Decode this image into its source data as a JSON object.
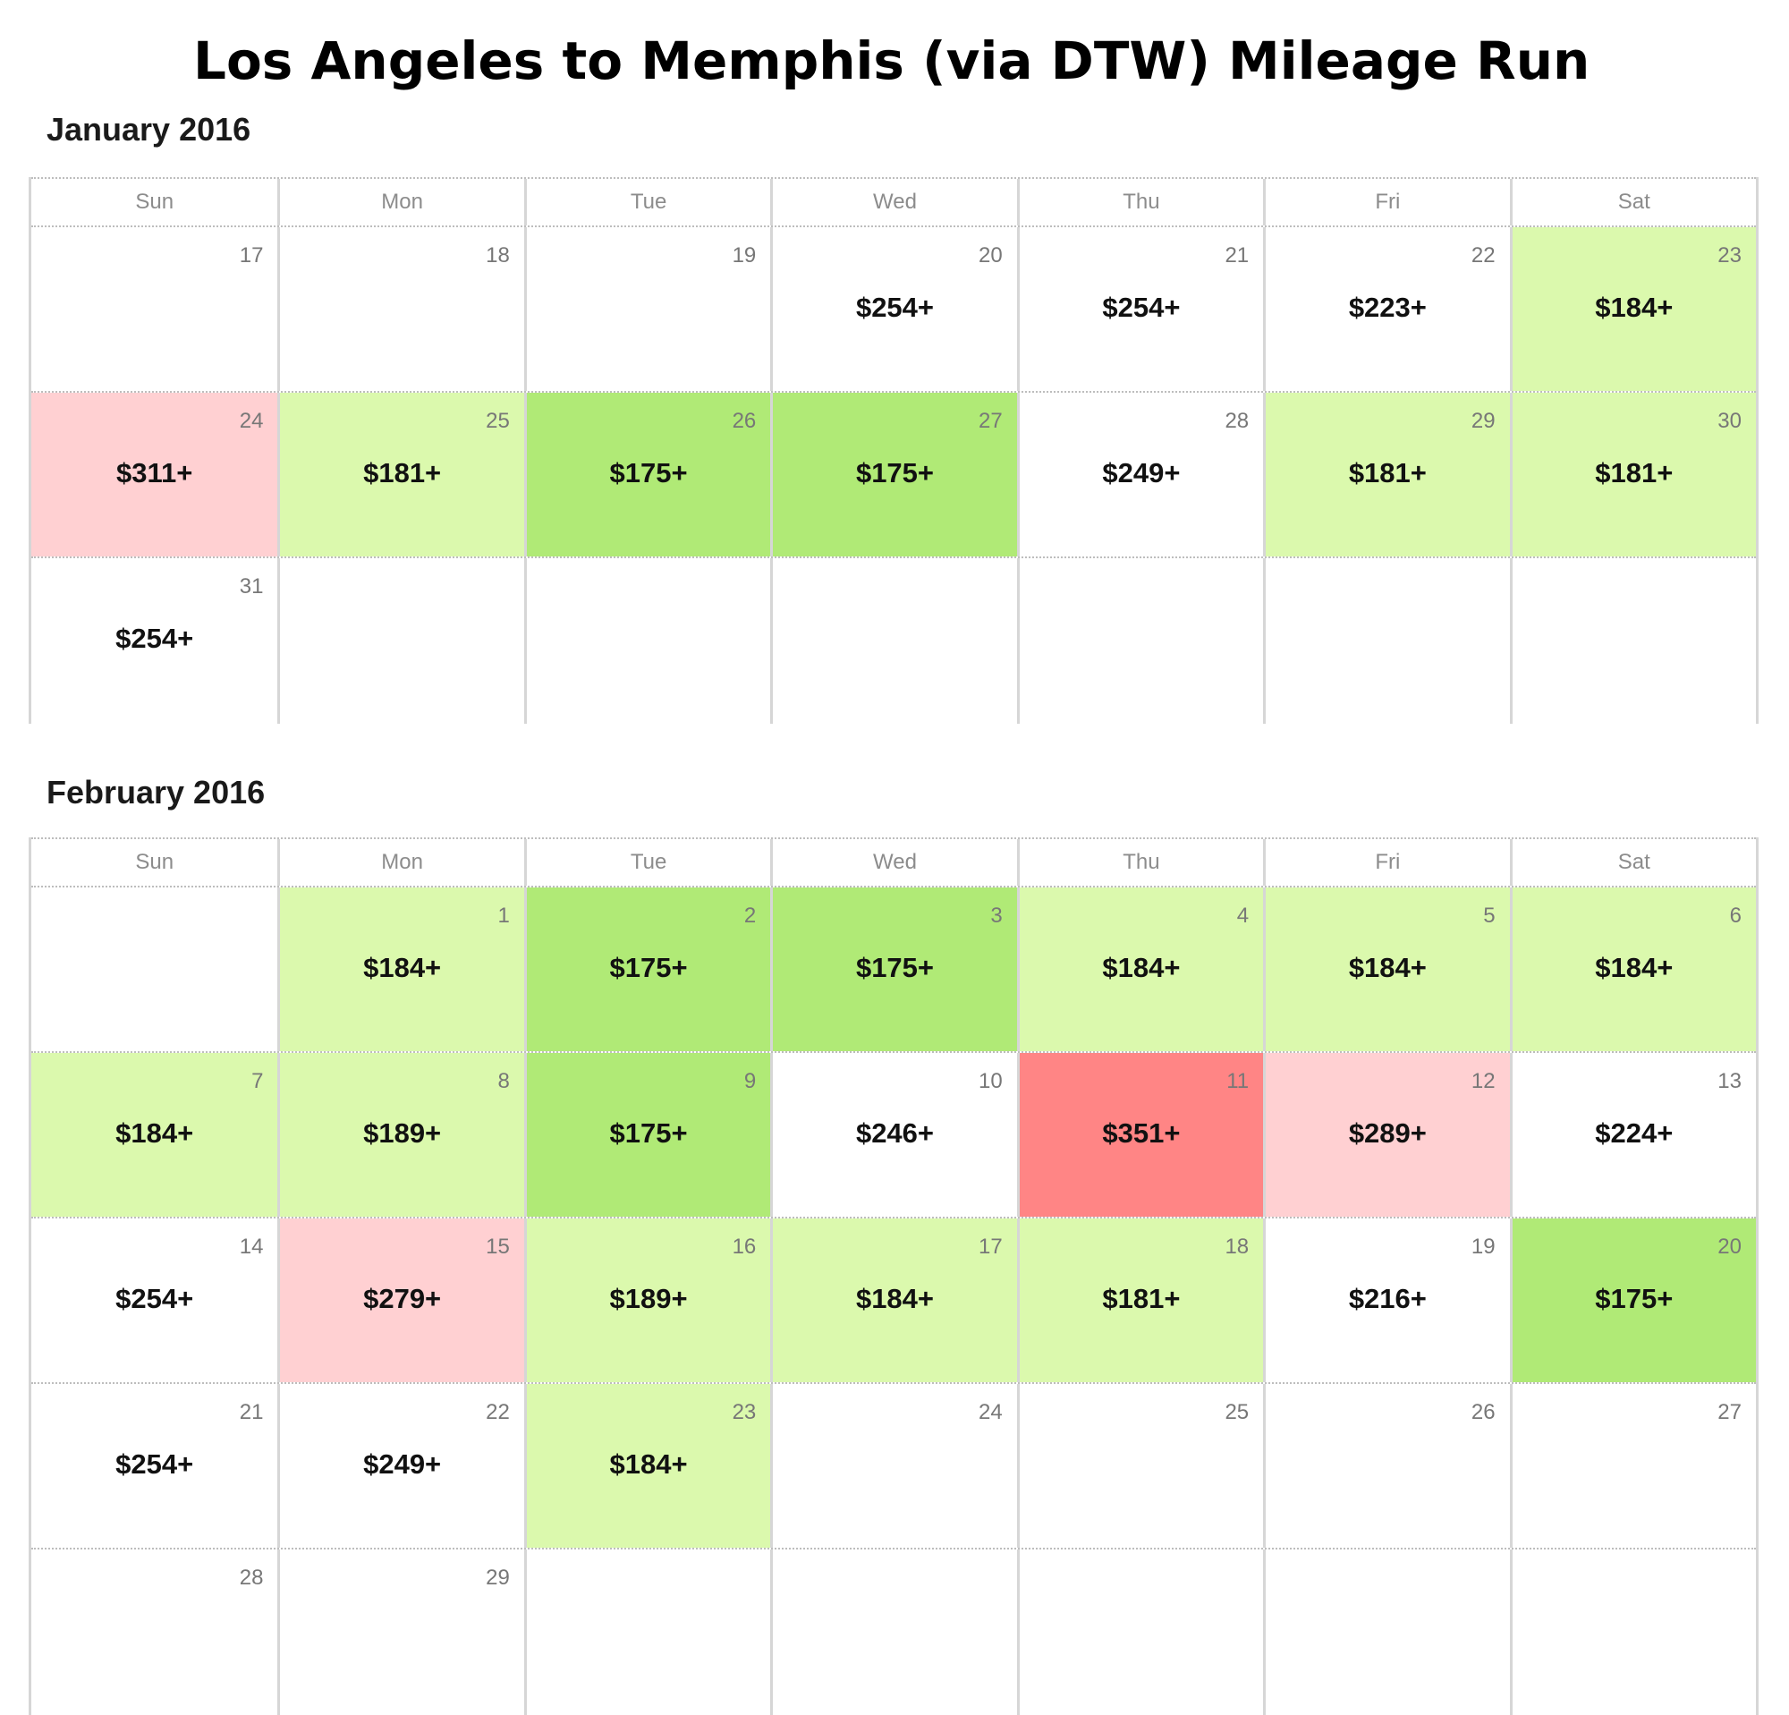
{
  "page_title": "Los Angeles to Memphis (via DTW) Mileage Run",
  "weekdays": [
    "Sun",
    "Mon",
    "Tue",
    "Wed",
    "Thu",
    "Fri",
    "Sat"
  ],
  "colors": {
    "light_green": "#dbf9ad",
    "green": "#b0ea76",
    "light_red": "#ffd0d2",
    "red": "#ff8585",
    "white": "#ffffff"
  },
  "months": [
    {
      "title": "January 2016",
      "weeks": [
        [
          {
            "day": "17",
            "price": "",
            "level": "none"
          },
          {
            "day": "18",
            "price": "",
            "level": "none"
          },
          {
            "day": "19",
            "price": "",
            "level": "none"
          },
          {
            "day": "20",
            "price": "$254+",
            "level": "none"
          },
          {
            "day": "21",
            "price": "$254+",
            "level": "none"
          },
          {
            "day": "22",
            "price": "$223+",
            "level": "none"
          },
          {
            "day": "23",
            "price": "$184+",
            "level": "light-green"
          }
        ],
        [
          {
            "day": "24",
            "price": "$311+",
            "level": "light-red"
          },
          {
            "day": "25",
            "price": "$181+",
            "level": "light-green"
          },
          {
            "day": "26",
            "price": "$175+",
            "level": "green"
          },
          {
            "day": "27",
            "price": "$175+",
            "level": "green"
          },
          {
            "day": "28",
            "price": "$249+",
            "level": "none"
          },
          {
            "day": "29",
            "price": "$181+",
            "level": "light-green"
          },
          {
            "day": "30",
            "price": "$181+",
            "level": "light-green"
          }
        ],
        [
          {
            "day": "31",
            "price": "$254+",
            "level": "none"
          },
          {
            "day": "",
            "price": "",
            "level": "none"
          },
          {
            "day": "",
            "price": "",
            "level": "none"
          },
          {
            "day": "",
            "price": "",
            "level": "none"
          },
          {
            "day": "",
            "price": "",
            "level": "none"
          },
          {
            "day": "",
            "price": "",
            "level": "none"
          },
          {
            "day": "",
            "price": "",
            "level": "none"
          }
        ]
      ]
    },
    {
      "title": "February 2016",
      "weeks": [
        [
          {
            "day": "",
            "price": "",
            "level": "none"
          },
          {
            "day": "1",
            "price": "$184+",
            "level": "light-green"
          },
          {
            "day": "2",
            "price": "$175+",
            "level": "green"
          },
          {
            "day": "3",
            "price": "$175+",
            "level": "green"
          },
          {
            "day": "4",
            "price": "$184+",
            "level": "light-green"
          },
          {
            "day": "5",
            "price": "$184+",
            "level": "light-green"
          },
          {
            "day": "6",
            "price": "$184+",
            "level": "light-green"
          }
        ],
        [
          {
            "day": "7",
            "price": "$184+",
            "level": "light-green"
          },
          {
            "day": "8",
            "price": "$189+",
            "level": "light-green"
          },
          {
            "day": "9",
            "price": "$175+",
            "level": "green"
          },
          {
            "day": "10",
            "price": "$246+",
            "level": "none"
          },
          {
            "day": "11",
            "price": "$351+",
            "level": "red"
          },
          {
            "day": "12",
            "price": "$289+",
            "level": "light-red"
          },
          {
            "day": "13",
            "price": "$224+",
            "level": "none"
          }
        ],
        [
          {
            "day": "14",
            "price": "$254+",
            "level": "none"
          },
          {
            "day": "15",
            "price": "$279+",
            "level": "light-red"
          },
          {
            "day": "16",
            "price": "$189+",
            "level": "light-green"
          },
          {
            "day": "17",
            "price": "$184+",
            "level": "light-green"
          },
          {
            "day": "18",
            "price": "$181+",
            "level": "light-green"
          },
          {
            "day": "19",
            "price": "$216+",
            "level": "none"
          },
          {
            "day": "20",
            "price": "$175+",
            "level": "green"
          }
        ],
        [
          {
            "day": "21",
            "price": "$254+",
            "level": "none"
          },
          {
            "day": "22",
            "price": "$249+",
            "level": "none"
          },
          {
            "day": "23",
            "price": "$184+",
            "level": "light-green"
          },
          {
            "day": "24",
            "price": "",
            "level": "none"
          },
          {
            "day": "25",
            "price": "",
            "level": "none"
          },
          {
            "day": "26",
            "price": "",
            "level": "none"
          },
          {
            "day": "27",
            "price": "",
            "level": "none"
          }
        ],
        [
          {
            "day": "28",
            "price": "",
            "level": "none"
          },
          {
            "day": "29",
            "price": "",
            "level": "none"
          },
          {
            "day": "",
            "price": "",
            "level": "none"
          },
          {
            "day": "",
            "price": "",
            "level": "none"
          },
          {
            "day": "",
            "price": "",
            "level": "none"
          },
          {
            "day": "",
            "price": "",
            "level": "none"
          },
          {
            "day": "",
            "price": "",
            "level": "none"
          }
        ]
      ]
    }
  ]
}
